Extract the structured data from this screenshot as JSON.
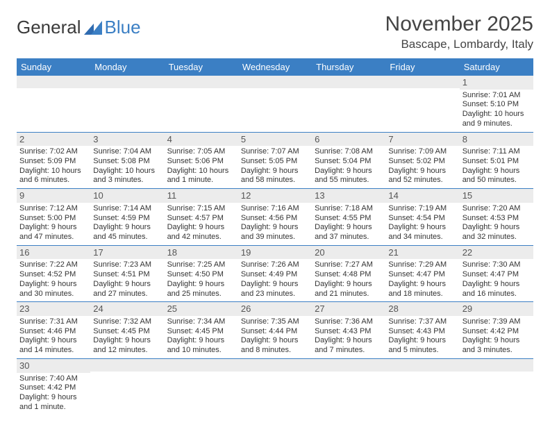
{
  "logo": {
    "text1": "General",
    "text2": "Blue"
  },
  "title": "November 2025",
  "location": "Bascape, Lombardy, Italy",
  "colors": {
    "header_bg": "#3b7fc4",
    "header_text": "#ffffff",
    "daynum_bg": "#ececec",
    "border": "#3b7fc4",
    "text": "#333333"
  },
  "day_names": [
    "Sunday",
    "Monday",
    "Tuesday",
    "Wednesday",
    "Thursday",
    "Friday",
    "Saturday"
  ],
  "weeks": [
    [
      {
        "day": "",
        "sunrise": "",
        "sunset": "",
        "daylight": ""
      },
      {
        "day": "",
        "sunrise": "",
        "sunset": "",
        "daylight": ""
      },
      {
        "day": "",
        "sunrise": "",
        "sunset": "",
        "daylight": ""
      },
      {
        "day": "",
        "sunrise": "",
        "sunset": "",
        "daylight": ""
      },
      {
        "day": "",
        "sunrise": "",
        "sunset": "",
        "daylight": ""
      },
      {
        "day": "",
        "sunrise": "",
        "sunset": "",
        "daylight": ""
      },
      {
        "day": "1",
        "sunrise": "Sunrise: 7:01 AM",
        "sunset": "Sunset: 5:10 PM",
        "daylight": "Daylight: 10 hours and 9 minutes."
      }
    ],
    [
      {
        "day": "2",
        "sunrise": "Sunrise: 7:02 AM",
        "sunset": "Sunset: 5:09 PM",
        "daylight": "Daylight: 10 hours and 6 minutes."
      },
      {
        "day": "3",
        "sunrise": "Sunrise: 7:04 AM",
        "sunset": "Sunset: 5:08 PM",
        "daylight": "Daylight: 10 hours and 3 minutes."
      },
      {
        "day": "4",
        "sunrise": "Sunrise: 7:05 AM",
        "sunset": "Sunset: 5:06 PM",
        "daylight": "Daylight: 10 hours and 1 minute."
      },
      {
        "day": "5",
        "sunrise": "Sunrise: 7:07 AM",
        "sunset": "Sunset: 5:05 PM",
        "daylight": "Daylight: 9 hours and 58 minutes."
      },
      {
        "day": "6",
        "sunrise": "Sunrise: 7:08 AM",
        "sunset": "Sunset: 5:04 PM",
        "daylight": "Daylight: 9 hours and 55 minutes."
      },
      {
        "day": "7",
        "sunrise": "Sunrise: 7:09 AM",
        "sunset": "Sunset: 5:02 PM",
        "daylight": "Daylight: 9 hours and 52 minutes."
      },
      {
        "day": "8",
        "sunrise": "Sunrise: 7:11 AM",
        "sunset": "Sunset: 5:01 PM",
        "daylight": "Daylight: 9 hours and 50 minutes."
      }
    ],
    [
      {
        "day": "9",
        "sunrise": "Sunrise: 7:12 AM",
        "sunset": "Sunset: 5:00 PM",
        "daylight": "Daylight: 9 hours and 47 minutes."
      },
      {
        "day": "10",
        "sunrise": "Sunrise: 7:14 AM",
        "sunset": "Sunset: 4:59 PM",
        "daylight": "Daylight: 9 hours and 45 minutes."
      },
      {
        "day": "11",
        "sunrise": "Sunrise: 7:15 AM",
        "sunset": "Sunset: 4:57 PM",
        "daylight": "Daylight: 9 hours and 42 minutes."
      },
      {
        "day": "12",
        "sunrise": "Sunrise: 7:16 AM",
        "sunset": "Sunset: 4:56 PM",
        "daylight": "Daylight: 9 hours and 39 minutes."
      },
      {
        "day": "13",
        "sunrise": "Sunrise: 7:18 AM",
        "sunset": "Sunset: 4:55 PM",
        "daylight": "Daylight: 9 hours and 37 minutes."
      },
      {
        "day": "14",
        "sunrise": "Sunrise: 7:19 AM",
        "sunset": "Sunset: 4:54 PM",
        "daylight": "Daylight: 9 hours and 34 minutes."
      },
      {
        "day": "15",
        "sunrise": "Sunrise: 7:20 AM",
        "sunset": "Sunset: 4:53 PM",
        "daylight": "Daylight: 9 hours and 32 minutes."
      }
    ],
    [
      {
        "day": "16",
        "sunrise": "Sunrise: 7:22 AM",
        "sunset": "Sunset: 4:52 PM",
        "daylight": "Daylight: 9 hours and 30 minutes."
      },
      {
        "day": "17",
        "sunrise": "Sunrise: 7:23 AM",
        "sunset": "Sunset: 4:51 PM",
        "daylight": "Daylight: 9 hours and 27 minutes."
      },
      {
        "day": "18",
        "sunrise": "Sunrise: 7:25 AM",
        "sunset": "Sunset: 4:50 PM",
        "daylight": "Daylight: 9 hours and 25 minutes."
      },
      {
        "day": "19",
        "sunrise": "Sunrise: 7:26 AM",
        "sunset": "Sunset: 4:49 PM",
        "daylight": "Daylight: 9 hours and 23 minutes."
      },
      {
        "day": "20",
        "sunrise": "Sunrise: 7:27 AM",
        "sunset": "Sunset: 4:48 PM",
        "daylight": "Daylight: 9 hours and 21 minutes."
      },
      {
        "day": "21",
        "sunrise": "Sunrise: 7:29 AM",
        "sunset": "Sunset: 4:47 PM",
        "daylight": "Daylight: 9 hours and 18 minutes."
      },
      {
        "day": "22",
        "sunrise": "Sunrise: 7:30 AM",
        "sunset": "Sunset: 4:47 PM",
        "daylight": "Daylight: 9 hours and 16 minutes."
      }
    ],
    [
      {
        "day": "23",
        "sunrise": "Sunrise: 7:31 AM",
        "sunset": "Sunset: 4:46 PM",
        "daylight": "Daylight: 9 hours and 14 minutes."
      },
      {
        "day": "24",
        "sunrise": "Sunrise: 7:32 AM",
        "sunset": "Sunset: 4:45 PM",
        "daylight": "Daylight: 9 hours and 12 minutes."
      },
      {
        "day": "25",
        "sunrise": "Sunrise: 7:34 AM",
        "sunset": "Sunset: 4:45 PM",
        "daylight": "Daylight: 9 hours and 10 minutes."
      },
      {
        "day": "26",
        "sunrise": "Sunrise: 7:35 AM",
        "sunset": "Sunset: 4:44 PM",
        "daylight": "Daylight: 9 hours and 8 minutes."
      },
      {
        "day": "27",
        "sunrise": "Sunrise: 7:36 AM",
        "sunset": "Sunset: 4:43 PM",
        "daylight": "Daylight: 9 hours and 7 minutes."
      },
      {
        "day": "28",
        "sunrise": "Sunrise: 7:37 AM",
        "sunset": "Sunset: 4:43 PM",
        "daylight": "Daylight: 9 hours and 5 minutes."
      },
      {
        "day": "29",
        "sunrise": "Sunrise: 7:39 AM",
        "sunset": "Sunset: 4:42 PM",
        "daylight": "Daylight: 9 hours and 3 minutes."
      }
    ],
    [
      {
        "day": "30",
        "sunrise": "Sunrise: 7:40 AM",
        "sunset": "Sunset: 4:42 PM",
        "daylight": "Daylight: 9 hours and 1 minute."
      },
      {
        "day": "",
        "sunrise": "",
        "sunset": "",
        "daylight": ""
      },
      {
        "day": "",
        "sunrise": "",
        "sunset": "",
        "daylight": ""
      },
      {
        "day": "",
        "sunrise": "",
        "sunset": "",
        "daylight": ""
      },
      {
        "day": "",
        "sunrise": "",
        "sunset": "",
        "daylight": ""
      },
      {
        "day": "",
        "sunrise": "",
        "sunset": "",
        "daylight": ""
      },
      {
        "day": "",
        "sunrise": "",
        "sunset": "",
        "daylight": ""
      }
    ]
  ]
}
